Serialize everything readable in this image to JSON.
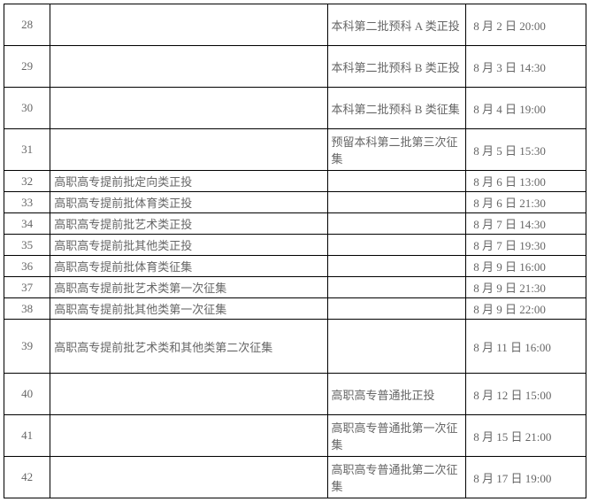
{
  "table": {
    "columns": {
      "col1_width": 50,
      "col2_width": 300,
      "col3_width": 150,
      "col4_width": 130
    },
    "font_size": 13,
    "text_color": "#666666",
    "border_color": "#000000",
    "background_color": "#ffffff",
    "rows": [
      {
        "num": "28",
        "desc": "",
        "category": "本科第二批预科 A 类正投",
        "time": "8 月 2 日 20:00",
        "height": "tall"
      },
      {
        "num": "29",
        "desc": "",
        "category": "本科第二批预科 B 类正投",
        "time": "8 月 3 日 14:30",
        "height": "tall"
      },
      {
        "num": "30",
        "desc": "",
        "category": "本科第二批预科 B 类征集",
        "time": "8 月 4 日 19:00",
        "height": "tall"
      },
      {
        "num": "31",
        "desc": "",
        "category": "预留本科第二批第三次征集",
        "time": "8 月 5 日 15:30",
        "height": "tall"
      },
      {
        "num": "32",
        "desc": "高职高专提前批定向类正投",
        "category": "",
        "time": "8 月 6 日 13:00",
        "height": "short"
      },
      {
        "num": "33",
        "desc": "高职高专提前批体育类正投",
        "category": "",
        "time": "8 月 6 日 21:30",
        "height": "short"
      },
      {
        "num": "34",
        "desc": "高职高专提前批艺术类正投",
        "category": "",
        "time": "8 月 7 日 14:30",
        "height": "short"
      },
      {
        "num": "35",
        "desc": "高职高专提前批其他类正投",
        "category": "",
        "time": "8 月 7 日 19:30",
        "height": "short"
      },
      {
        "num": "36",
        "desc": "高职高专提前批体育类征集",
        "category": "",
        "time": "8 月 9 日 16:00",
        "height": "short"
      },
      {
        "num": "37",
        "desc": "高职高专提前批艺术类第一次征集",
        "category": "",
        "time": "8 月 9 日 21:30",
        "height": "short"
      },
      {
        "num": "38",
        "desc": "高职高专提前批其他类第一次征集",
        "category": "",
        "time": "8 月 9 日 22:00",
        "height": "short"
      },
      {
        "num": "39",
        "desc": "高职高专提前批艺术类和其他类第二次征集",
        "category": "",
        "time": "8 月 11 日 16:00",
        "height": "xtall"
      },
      {
        "num": "40",
        "desc": "",
        "category": "高职高专普通批正投",
        "time": "8 月 12 日 15:00",
        "height": "tall"
      },
      {
        "num": "41",
        "desc": "",
        "category": "高职高专普通批第一次征集",
        "time": "8 月 15 日 21:00",
        "height": "tall"
      },
      {
        "num": "42",
        "desc": "",
        "category": "高职高专普通批第二次征集",
        "time": "8 月 17 日 19:00",
        "height": "tall"
      }
    ]
  }
}
